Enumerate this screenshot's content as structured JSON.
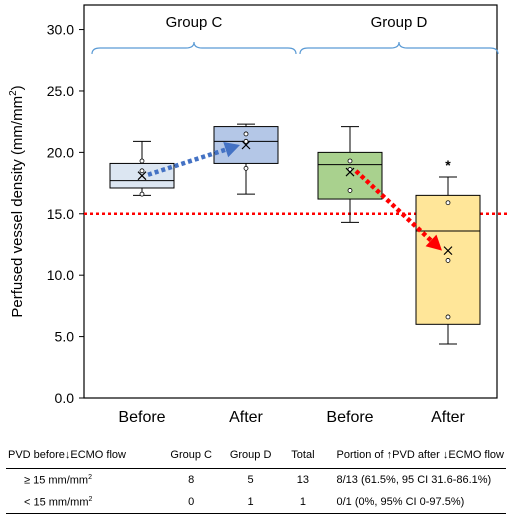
{
  "chart_data": {
    "type": "box",
    "ylabel": "Perfused vessel density (mm/mm",
    "ylabel_sup": "2",
    "ylabel_close": ")",
    "ylim": [
      0,
      32
    ],
    "yticks": [
      0.0,
      5.0,
      10.0,
      15.0,
      20.0,
      25.0,
      30.0
    ],
    "ytick_labels": [
      "0.0",
      "5.0",
      "10.0",
      "15.0",
      "20.0",
      "25.0",
      "30.0"
    ],
    "categories": [
      "Before",
      "After",
      "Before",
      "After"
    ],
    "groups": [
      {
        "label": "Group C",
        "boxes": [
          0,
          1
        ]
      },
      {
        "label": "Group D",
        "boxes": [
          2,
          3
        ]
      }
    ],
    "boxes": [
      {
        "category": "Before",
        "group": "Group C",
        "min": 16.5,
        "q1": 17.1,
        "median": 17.7,
        "q3": 19.1,
        "max": 20.9,
        "mean": 18.1,
        "points": [
          16.6,
          18.5,
          19.3
        ],
        "fill": "#dce6f2"
      },
      {
        "category": "After",
        "group": "Group C",
        "min": 16.6,
        "q1": 19.1,
        "median": 20.9,
        "q3": 22.1,
        "max": 22.3,
        "mean": 20.6,
        "points": [
          18.7,
          20.9,
          21.5
        ],
        "fill": "#b4c7e7"
      },
      {
        "category": "Before",
        "group": "Group D",
        "min": 14.3,
        "q1": 16.2,
        "median": 19.0,
        "q3": 20.0,
        "max": 22.1,
        "mean": 18.4,
        "points": [
          16.9,
          18.6,
          19.3
        ],
        "fill": "#a9d18e"
      },
      {
        "category": "After",
        "group": "Group D",
        "min": 4.4,
        "q1": 6.0,
        "median": 13.6,
        "q3": 16.5,
        "max": 18.0,
        "mean": 12.0,
        "points": [
          6.6,
          11.2,
          15.9
        ],
        "fill": "#ffe699"
      }
    ],
    "threshold": 15.0,
    "significance": {
      "box": 3,
      "label": "*"
    },
    "arrows": [
      {
        "from_box": 0,
        "to_box": 1,
        "color": "#4472c4"
      },
      {
        "from_box": 2,
        "to_box": 3,
        "color": "#ff0000"
      }
    ]
  },
  "table": {
    "headers": [
      "PVD before↓ECMO flow",
      "Group C",
      "Group D",
      "Total",
      "Portion of ↑PVD after ↓ECMO flow"
    ],
    "rows": [
      {
        "label": "≥ 15 mm/mm",
        "label_sup": "2",
        "c": "8",
        "d": "5",
        "total": "13",
        "portion": "8/13 (61.5%, 95 CI 31.6-86.1%)"
      },
      {
        "label": "< 15 mm/mm",
        "label_sup": "2",
        "c": "0",
        "d": "1",
        "total": "1",
        "portion": "0/1  (0%, 95% CI 0-97.5%)"
      }
    ]
  }
}
